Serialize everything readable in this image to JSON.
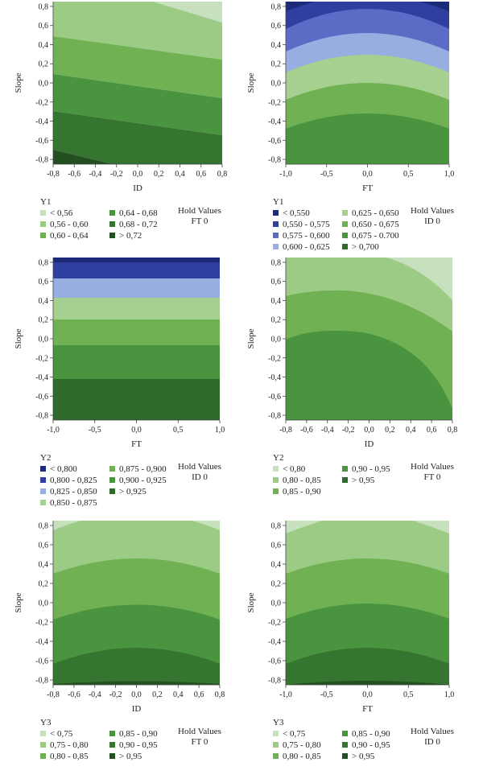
{
  "chart_data": [
    {
      "id": "p1",
      "type": "contour",
      "response": "Y1",
      "xlabel": "ID",
      "ylabel": "Slope",
      "xticks": [
        "-0,8",
        "-0,6",
        "-0,4",
        "-0,2",
        "0,0",
        "0,2",
        "0,4",
        "0,6",
        "0,8"
      ],
      "yticks": [
        "0,8",
        "0,6",
        "0,4",
        "0,2",
        "0,0",
        "-0,2",
        "-0,4",
        "-0,6",
        "-0,8"
      ],
      "xlim": [
        -0.8,
        0.8
      ],
      "ylim": [
        -0.85,
        0.85
      ],
      "hold_title": "Hold Values",
      "hold_value": "FT 0",
      "legend": [
        {
          "label": "< 0,56",
          "color": "#c7e0bd"
        },
        {
          "label": "0,56 - 0,60",
          "color": "#9ccb86"
        },
        {
          "label": "0,60 - 0,64",
          "color": "#6fb153"
        },
        {
          "label": "0,64 - 0,68",
          "color": "#4a9440"
        },
        {
          "label": "0,68 - 0,72",
          "color": "#357530"
        },
        {
          "label": "> 0,72",
          "color": "#244f20"
        }
      ]
    },
    {
      "id": "p2",
      "type": "contour",
      "response": "Y1",
      "xlabel": "FT",
      "ylabel": "Slope",
      "xticks": [
        "-1,0",
        "-0,5",
        "0,0",
        "0,5",
        "1,0"
      ],
      "yticks": [
        "0,8",
        "0,6",
        "0,4",
        "0,2",
        "0,0",
        "-0,2",
        "-0,4",
        "-0,6",
        "-0,8"
      ],
      "xlim": [
        -1.0,
        1.0
      ],
      "ylim": [
        -0.85,
        0.85
      ],
      "hold_title": "Hold Values",
      "hold_value": "ID 0",
      "legend": [
        {
          "label": "< 0,550",
          "color": "#1d2a7a"
        },
        {
          "label": "0,550 - 0,575",
          "color": "#2e3fa0"
        },
        {
          "label": "0,575 - 0,600",
          "color": "#5a6cc6"
        },
        {
          "label": "0,600 - 0,625",
          "color": "#98aee0"
        },
        {
          "label": "0,625 - 0,650",
          "color": "#a6d08f"
        },
        {
          "label": "0,650 - 0,675",
          "color": "#6fb153"
        },
        {
          "label": "0,675 - 0.700",
          "color": "#4a9440"
        },
        {
          "label": "> 0,700",
          "color": "#2f6a2b"
        }
      ]
    },
    {
      "id": "p3",
      "type": "contour",
      "response": "Y2",
      "xlabel": "FT",
      "ylabel": "Slope",
      "xticks": [
        "-1,0",
        "-0,5",
        "0,0",
        "0,5",
        "1,0"
      ],
      "yticks": [
        "0,8",
        "0,6",
        "0,4",
        "0,2",
        "0,0",
        "-0,2",
        "-0,4",
        "-0,6",
        "-0,8"
      ],
      "xlim": [
        -1.0,
        1.0
      ],
      "ylim": [
        -0.85,
        0.85
      ],
      "hold_title": "Hold Values",
      "hold_value": "ID 0",
      "legend": [
        {
          "label": "< 0,800",
          "color": "#1d2a7a"
        },
        {
          "label": "0,800 - 0,825",
          "color": "#2e3fa0"
        },
        {
          "label": "0,825 - 0,850",
          "color": "#98aee0"
        },
        {
          "label": "0,850 - 0,875",
          "color": "#a6d08f"
        },
        {
          "label": "0,875 - 0,900",
          "color": "#6fb153"
        },
        {
          "label": "0,900 - 0,925",
          "color": "#4a9440"
        },
        {
          "label": "> 0,925",
          "color": "#2f6a2b"
        }
      ]
    },
    {
      "id": "p4",
      "type": "contour",
      "response": "Y2",
      "xlabel": "ID",
      "ylabel": "Slope",
      "xticks": [
        "-0,8",
        "-0,6",
        "-0,4",
        "-0,2",
        "0,0",
        "0,2",
        "0,4",
        "0,6",
        "0,8"
      ],
      "yticks": [
        "0,8",
        "0,6",
        "0,4",
        "0,2",
        "0,0",
        "-0,2",
        "-0,4",
        "-0,6",
        "-0,8"
      ],
      "xlim": [
        -0.8,
        0.8
      ],
      "ylim": [
        -0.85,
        0.85
      ],
      "hold_title": "Hold Values",
      "hold_value": "FT 0",
      "legend": [
        {
          "label": "< 0,80",
          "color": "#c7e0bd"
        },
        {
          "label": "0,80 - 0,85",
          "color": "#9ccb86"
        },
        {
          "label": "0,85 - 0,90",
          "color": "#6fb153"
        },
        {
          "label": "0,90 - 0,95",
          "color": "#4a9440"
        },
        {
          "label": "> 0,95",
          "color": "#2f6a2b"
        }
      ]
    },
    {
      "id": "p5",
      "type": "contour",
      "response": "Y3",
      "xlabel": "ID",
      "ylabel": "Slope",
      "xticks": [
        "-0,8",
        "-0,6",
        "-0,4",
        "-0,2",
        "0,0",
        "0,2",
        "0,4",
        "0,6",
        "0,8"
      ],
      "yticks": [
        "0,8",
        "0,6",
        "0,4",
        "0,2",
        "0,0",
        "-0,2",
        "-0,4",
        "-0,6",
        "-0,8"
      ],
      "xlim": [
        -0.8,
        0.8
      ],
      "ylim": [
        -0.85,
        0.85
      ],
      "hold_title": "Hold Values",
      "hold_value": "FT 0",
      "legend": [
        {
          "label": "< 0,75",
          "color": "#c7e0bd"
        },
        {
          "label": "0,75 - 0,80",
          "color": "#9ccb86"
        },
        {
          "label": "0,80 - 0,85",
          "color": "#6fb153"
        },
        {
          "label": "0,85 - 0,90",
          "color": "#4a9440"
        },
        {
          "label": "0,90 - 0,95",
          "color": "#357530"
        },
        {
          "label": "> 0,95",
          "color": "#244f20"
        }
      ]
    },
    {
      "id": "p6",
      "type": "contour",
      "response": "Y3",
      "xlabel": "FT",
      "ylabel": "Slope",
      "xticks": [
        "-1,0",
        "-0,5",
        "0,0",
        "0,5",
        "1,0"
      ],
      "yticks": [
        "0,8",
        "0,6",
        "0,4",
        "0,2",
        "0,0",
        "-0,2",
        "-0,4",
        "-0,6",
        "-0,8"
      ],
      "xlim": [
        -1.0,
        1.0
      ],
      "ylim": [
        -0.85,
        0.85
      ],
      "hold_title": "Hold Values",
      "hold_value": "ID 0",
      "legend": [
        {
          "label": "< 0,75",
          "color": "#c7e0bd"
        },
        {
          "label": "0,75 - 0,80",
          "color": "#9ccb86"
        },
        {
          "label": "0,80 - 0,85",
          "color": "#6fb153"
        },
        {
          "label": "0,85 - 0,90",
          "color": "#4a9440"
        },
        {
          "label": "0,90 - 0,95",
          "color": "#357530"
        },
        {
          "label": "> 0,95",
          "color": "#244f20"
        }
      ]
    }
  ]
}
